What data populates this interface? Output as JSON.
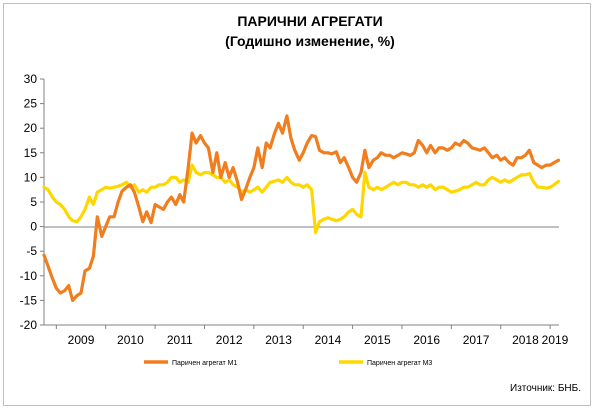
{
  "chart_data": {
    "type": "line",
    "title": "ПАРИЧНИ АГРЕГАТИ",
    "subtitle": "(Годишно изменение, %)",
    "source": "Източник: БНБ.",
    "ylim": [
      -20,
      30
    ],
    "yticks": [
      "30",
      "25",
      "20",
      "15",
      "10",
      "5",
      "0",
      "-5",
      "-10",
      "-15",
      "-20"
    ],
    "xlim": [
      2008.75,
      2019.18
    ],
    "year_labels": [
      "2009",
      "2010",
      "2011",
      "2012",
      "2013",
      "2014",
      "2015",
      "2016",
      "2017",
      "2018",
      "2019"
    ],
    "grid": false,
    "legend_position": "bottom",
    "series": [
      {
        "name": "Паричен агрегат М1",
        "color": "#f07d1e",
        "points": [
          [
            2008.75,
            -5.8
          ],
          [
            2008.83,
            -8
          ],
          [
            2008.92,
            -10.5
          ],
          [
            2009.0,
            -12.5
          ],
          [
            2009.08,
            -13.5
          ],
          [
            2009.17,
            -13
          ],
          [
            2009.25,
            -12
          ],
          [
            2009.33,
            -15
          ],
          [
            2009.42,
            -14
          ],
          [
            2009.5,
            -13.5
          ],
          [
            2009.58,
            -9
          ],
          [
            2009.67,
            -8.5
          ],
          [
            2009.75,
            -6
          ],
          [
            2009.83,
            2
          ],
          [
            2009.92,
            -2
          ],
          [
            2010.0,
            0
          ],
          [
            2010.08,
            2
          ],
          [
            2010.17,
            2
          ],
          [
            2010.25,
            5
          ],
          [
            2010.33,
            7.2
          ],
          [
            2010.42,
            8
          ],
          [
            2010.5,
            8.5
          ],
          [
            2010.58,
            7
          ],
          [
            2010.67,
            4
          ],
          [
            2010.75,
            1
          ],
          [
            2010.83,
            3
          ],
          [
            2010.92,
            0.8
          ],
          [
            2011.0,
            4.5
          ],
          [
            2011.08,
            4
          ],
          [
            2011.17,
            3.5
          ],
          [
            2011.25,
            5
          ],
          [
            2011.33,
            6
          ],
          [
            2011.42,
            4.5
          ],
          [
            2011.5,
            6.5
          ],
          [
            2011.58,
            5
          ],
          [
            2011.67,
            12
          ],
          [
            2011.75,
            19
          ],
          [
            2011.83,
            17
          ],
          [
            2011.92,
            18.5
          ],
          [
            2012.0,
            17
          ],
          [
            2012.08,
            16
          ],
          [
            2012.17,
            11
          ],
          [
            2012.25,
            15
          ],
          [
            2012.33,
            10
          ],
          [
            2012.42,
            13
          ],
          [
            2012.5,
            10
          ],
          [
            2012.58,
            12
          ],
          [
            2012.67,
            9
          ],
          [
            2012.75,
            5.5
          ],
          [
            2012.83,
            7.5
          ],
          [
            2012.92,
            10
          ],
          [
            2013.0,
            12
          ],
          [
            2013.08,
            16
          ],
          [
            2013.17,
            12
          ],
          [
            2013.25,
            17
          ],
          [
            2013.33,
            16
          ],
          [
            2013.42,
            19
          ],
          [
            2013.5,
            21
          ],
          [
            2013.58,
            19
          ],
          [
            2013.67,
            22.5
          ],
          [
            2013.75,
            18
          ],
          [
            2013.83,
            15.5
          ],
          [
            2013.92,
            13.5
          ],
          [
            2014.0,
            15
          ],
          [
            2014.08,
            17
          ],
          [
            2014.17,
            18.5
          ],
          [
            2014.25,
            18.3
          ],
          [
            2014.33,
            15.5
          ],
          [
            2014.42,
            15
          ],
          [
            2014.5,
            15
          ],
          [
            2014.58,
            14.8
          ],
          [
            2014.67,
            15.2
          ],
          [
            2014.75,
            13
          ],
          [
            2014.83,
            14
          ],
          [
            2014.92,
            12
          ],
          [
            2015.0,
            10
          ],
          [
            2015.08,
            9
          ],
          [
            2015.17,
            11
          ],
          [
            2015.25,
            15.5
          ],
          [
            2015.33,
            12
          ],
          [
            2015.42,
            13.5
          ],
          [
            2015.5,
            14
          ],
          [
            2015.58,
            15
          ],
          [
            2015.67,
            14.5
          ],
          [
            2015.75,
            14.5
          ],
          [
            2015.83,
            14
          ],
          [
            2015.92,
            14.5
          ],
          [
            2016.0,
            15
          ],
          [
            2016.08,
            14.8
          ],
          [
            2016.17,
            14.5
          ],
          [
            2016.25,
            15
          ],
          [
            2016.33,
            17.5
          ],
          [
            2016.42,
            16.5
          ],
          [
            2016.5,
            15
          ],
          [
            2016.58,
            16.5
          ],
          [
            2016.67,
            15
          ],
          [
            2016.75,
            16
          ],
          [
            2016.83,
            16
          ],
          [
            2016.92,
            15.5
          ],
          [
            2017.0,
            16
          ],
          [
            2017.08,
            17
          ],
          [
            2017.17,
            16.5
          ],
          [
            2017.25,
            17.5
          ],
          [
            2017.33,
            17
          ],
          [
            2017.42,
            16
          ],
          [
            2017.5,
            15.8
          ],
          [
            2017.58,
            15.5
          ],
          [
            2017.67,
            16
          ],
          [
            2017.75,
            15
          ],
          [
            2017.83,
            14
          ],
          [
            2017.92,
            14.5
          ],
          [
            2018.0,
            13.5
          ],
          [
            2018.08,
            14
          ],
          [
            2018.17,
            13
          ],
          [
            2018.25,
            12.5
          ],
          [
            2018.33,
            14
          ],
          [
            2018.42,
            14
          ],
          [
            2018.5,
            14.5
          ],
          [
            2018.58,
            15.5
          ],
          [
            2018.67,
            13
          ],
          [
            2018.75,
            12.5
          ],
          [
            2018.83,
            12
          ],
          [
            2018.92,
            12.5
          ],
          [
            2019.0,
            12.5
          ],
          [
            2019.08,
            13
          ],
          [
            2019.17,
            13.5
          ]
        ]
      },
      {
        "name": "Паричен агрегат М3",
        "color": "#ffd700",
        "points": [
          [
            2008.75,
            8
          ],
          [
            2008.83,
            7.5
          ],
          [
            2008.92,
            6
          ],
          [
            2009.0,
            5
          ],
          [
            2009.08,
            4.5
          ],
          [
            2009.17,
            3.5
          ],
          [
            2009.25,
            2
          ],
          [
            2009.33,
            1.2
          ],
          [
            2009.42,
            1
          ],
          [
            2009.5,
            2
          ],
          [
            2009.58,
            3.5
          ],
          [
            2009.67,
            6
          ],
          [
            2009.75,
            4.5
          ],
          [
            2009.83,
            7
          ],
          [
            2009.92,
            7.5
          ],
          [
            2010.0,
            8
          ],
          [
            2010.08,
            7.8
          ],
          [
            2010.17,
            8
          ],
          [
            2010.25,
            8.2
          ],
          [
            2010.33,
            8.5
          ],
          [
            2010.42,
            9
          ],
          [
            2010.5,
            8
          ],
          [
            2010.58,
            8.5
          ],
          [
            2010.67,
            7
          ],
          [
            2010.75,
            7.5
          ],
          [
            2010.83,
            7
          ],
          [
            2010.92,
            8
          ],
          [
            2011.0,
            8
          ],
          [
            2011.08,
            8.5
          ],
          [
            2011.17,
            8.5
          ],
          [
            2011.25,
            9
          ],
          [
            2011.33,
            10
          ],
          [
            2011.42,
            10
          ],
          [
            2011.5,
            9
          ],
          [
            2011.58,
            9.5
          ],
          [
            2011.67,
            9
          ],
          [
            2011.75,
            12.5
          ],
          [
            2011.83,
            11
          ],
          [
            2011.92,
            10.5
          ],
          [
            2012.0,
            11
          ],
          [
            2012.08,
            11
          ],
          [
            2012.17,
            10.5
          ],
          [
            2012.25,
            10
          ],
          [
            2012.33,
            10
          ],
          [
            2012.42,
            9
          ],
          [
            2012.5,
            9.5
          ],
          [
            2012.58,
            8.5
          ],
          [
            2012.67,
            8
          ],
          [
            2012.75,
            7
          ],
          [
            2012.83,
            7.5
          ],
          [
            2012.92,
            7
          ],
          [
            2013.0,
            7.5
          ],
          [
            2013.08,
            8
          ],
          [
            2013.17,
            7
          ],
          [
            2013.25,
            8
          ],
          [
            2013.33,
            9
          ],
          [
            2013.42,
            9.2
          ],
          [
            2013.5,
            9.5
          ],
          [
            2013.58,
            9
          ],
          [
            2013.67,
            10
          ],
          [
            2013.75,
            9
          ],
          [
            2013.83,
            8.5
          ],
          [
            2013.92,
            8.5
          ],
          [
            2014.0,
            8
          ],
          [
            2014.08,
            8.5
          ],
          [
            2014.17,
            7.5
          ],
          [
            2014.25,
            -1.2
          ],
          [
            2014.33,
            1
          ],
          [
            2014.42,
            1.5
          ],
          [
            2014.5,
            1.8
          ],
          [
            2014.58,
            1.5
          ],
          [
            2014.67,
            1.2
          ],
          [
            2014.75,
            1.5
          ],
          [
            2014.83,
            2
          ],
          [
            2014.92,
            3
          ],
          [
            2015.0,
            3.5
          ],
          [
            2015.08,
            2.5
          ],
          [
            2015.17,
            2
          ],
          [
            2015.25,
            11
          ],
          [
            2015.33,
            8
          ],
          [
            2015.42,
            7.5
          ],
          [
            2015.5,
            8
          ],
          [
            2015.58,
            7.5
          ],
          [
            2015.67,
            8
          ],
          [
            2015.75,
            8.5
          ],
          [
            2015.83,
            9
          ],
          [
            2015.92,
            8.5
          ],
          [
            2016.0,
            9
          ],
          [
            2016.08,
            9
          ],
          [
            2016.17,
            8.5
          ],
          [
            2016.25,
            8.5
          ],
          [
            2016.33,
            8
          ],
          [
            2016.42,
            8.5
          ],
          [
            2016.5,
            8
          ],
          [
            2016.58,
            8.5
          ],
          [
            2016.67,
            7.5
          ],
          [
            2016.75,
            8
          ],
          [
            2016.83,
            8
          ],
          [
            2016.92,
            7.5
          ],
          [
            2017.0,
            7
          ],
          [
            2017.08,
            7.2
          ],
          [
            2017.17,
            7.5
          ],
          [
            2017.25,
            8
          ],
          [
            2017.33,
            8
          ],
          [
            2017.42,
            8.5
          ],
          [
            2017.5,
            9
          ],
          [
            2017.58,
            8.5
          ],
          [
            2017.67,
            8.5
          ],
          [
            2017.75,
            9.5
          ],
          [
            2017.83,
            10
          ],
          [
            2017.92,
            9.5
          ],
          [
            2018.0,
            9
          ],
          [
            2018.08,
            9.5
          ],
          [
            2018.17,
            9
          ],
          [
            2018.25,
            9.5
          ],
          [
            2018.33,
            10
          ],
          [
            2018.42,
            10.5
          ],
          [
            2018.5,
            10.5
          ],
          [
            2018.58,
            10.8
          ],
          [
            2018.67,
            9
          ],
          [
            2018.75,
            8
          ],
          [
            2018.83,
            8
          ],
          [
            2018.92,
            7.8
          ],
          [
            2019.0,
            8
          ],
          [
            2019.08,
            8.5
          ],
          [
            2019.17,
            9.2
          ]
        ]
      }
    ]
  }
}
